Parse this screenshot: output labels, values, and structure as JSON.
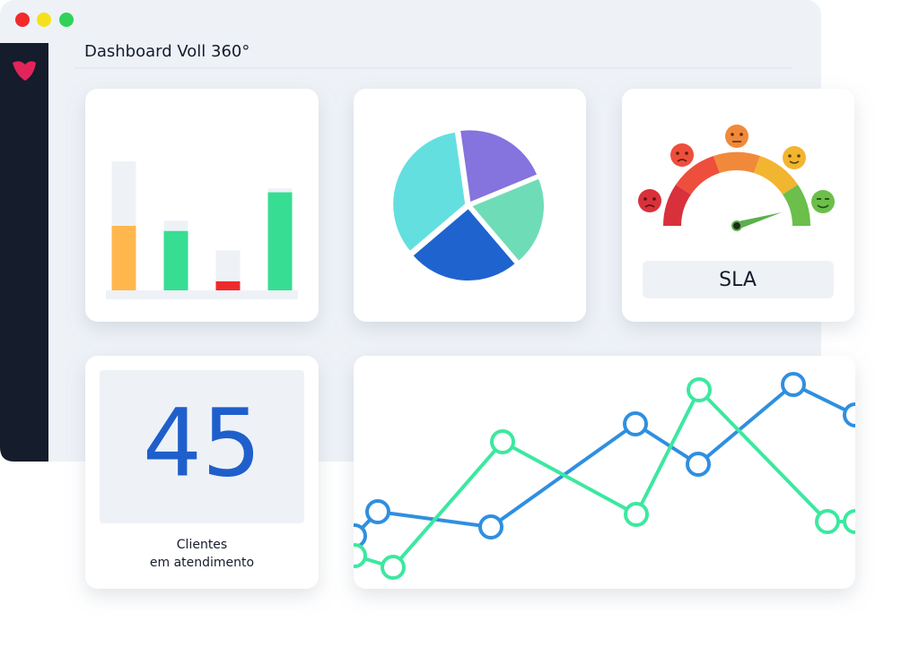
{
  "header": {
    "title": "Dashboard Voll 360°"
  },
  "bar_chart": {
    "type": "bar",
    "values": [
      50,
      46,
      7,
      76
    ],
    "tracks": [
      100,
      54,
      31,
      79
    ],
    "colors": [
      "#ffb74d",
      "#37dd93",
      "#ee2b2b",
      "#37dd93"
    ],
    "track_color": "#eef2f7"
  },
  "pie_chart": {
    "type": "pie",
    "values": [
      21,
      20,
      25,
      34
    ],
    "colors": [
      "#8573de",
      "#6fdcb8",
      "#1f63cf",
      "#63dfe0"
    ]
  },
  "gauge": {
    "label": "SLA"
  },
  "stat": {
    "value": "45",
    "caption_line1": "Clientes",
    "caption_line2": "em atendimento"
  },
  "line_chart": {
    "type": "line",
    "series": [
      {
        "color": "#2f8fe0",
        "x": [
          1,
          27,
          153,
          314,
          384,
          490,
          559
        ],
        "values": [
          59,
          86,
          69,
          184,
          139,
          228,
          194
        ]
      },
      {
        "color": "#3ce8a0",
        "x": [
          1,
          44,
          166,
          315,
          385,
          528,
          559
        ],
        "values": [
          37,
          24,
          164,
          83,
          222,
          75,
          75
        ]
      }
    ]
  }
}
